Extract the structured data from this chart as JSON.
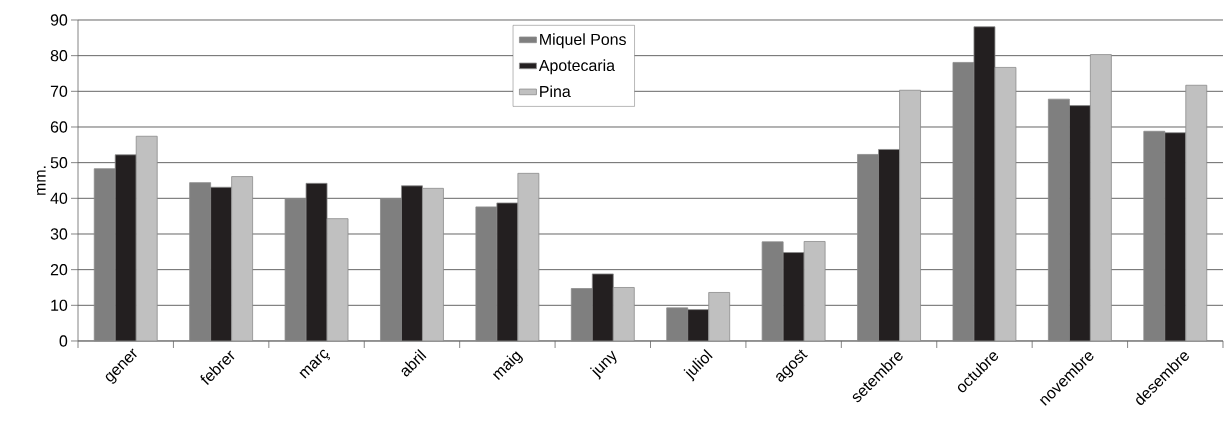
{
  "chart_data": {
    "type": "bar",
    "ylabel": "mm.",
    "categories": [
      "gener",
      "febrer",
      "març",
      "abril",
      "maig",
      "juny",
      "juliol",
      "agost",
      "setembre",
      "octubre",
      "novembre",
      "desembre"
    ],
    "series": [
      {
        "name": "Miquel Pons",
        "color": "#7f7f7f",
        "values": [
          48.3,
          44.4,
          39.8,
          39.8,
          37.6,
          14.7,
          9.3,
          27.8,
          52.3,
          78.1,
          67.8,
          58.8
        ]
      },
      {
        "name": "Apotecaria",
        "color": "#231f20",
        "values": [
          52.2,
          43.1,
          44.2,
          43.5,
          38.7,
          18.8,
          8.8,
          24.8,
          53.7,
          88.1,
          66.0,
          58.4
        ]
      },
      {
        "name": "Pina",
        "color": "#c0c0c0",
        "values": [
          57.4,
          46.1,
          34.3,
          42.8,
          47.0,
          15.0,
          13.6,
          27.9,
          70.3,
          76.7,
          80.3,
          71.7
        ]
      }
    ],
    "ylim": [
      0,
      90
    ],
    "yticks": [
      0,
      10,
      20,
      30,
      40,
      50,
      60,
      70,
      80,
      90
    ],
    "grid": "y",
    "legend": "top"
  }
}
